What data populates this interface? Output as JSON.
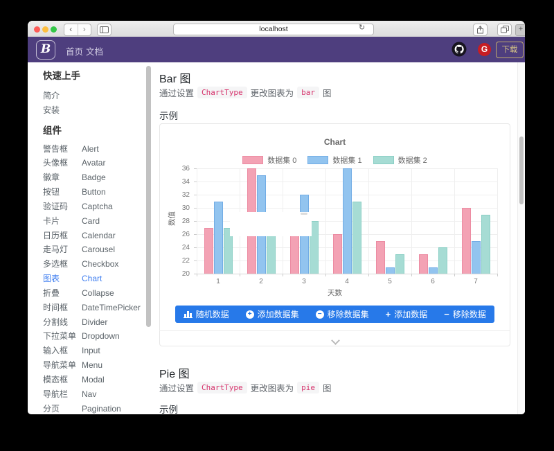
{
  "browser": {
    "url": "localhost",
    "back_glyph": "‹",
    "forward_glyph": "›",
    "reload_glyph": "↻",
    "newtab_glyph": "+"
  },
  "navbar": {
    "logo": "B",
    "links": [
      "首页",
      "文档"
    ],
    "download_label": "下载"
  },
  "sidebar": {
    "sections": [
      {
        "title": "快速上手",
        "items": [
          {
            "zh": "简介",
            "en": ""
          },
          {
            "zh": "安装",
            "en": ""
          }
        ]
      },
      {
        "title": "组件",
        "items": [
          {
            "zh": "警告框",
            "en": "Alert"
          },
          {
            "zh": "头像框",
            "en": "Avatar"
          },
          {
            "zh": "徽章",
            "en": "Badge"
          },
          {
            "zh": "按钮",
            "en": "Button"
          },
          {
            "zh": "验证码",
            "en": "Captcha"
          },
          {
            "zh": "卡片",
            "en": "Card"
          },
          {
            "zh": "日历框",
            "en": "Calendar"
          },
          {
            "zh": "走马灯",
            "en": "Carousel"
          },
          {
            "zh": "多选框",
            "en": "Checkbox"
          },
          {
            "zh": "图表",
            "en": "Chart",
            "active": true
          },
          {
            "zh": "折叠",
            "en": "Collapse"
          },
          {
            "zh": "时间框",
            "en": "DateTimePicker"
          },
          {
            "zh": "分割线",
            "en": "Divider"
          },
          {
            "zh": "下拉菜单",
            "en": "Dropdown"
          },
          {
            "zh": "输入框",
            "en": "Input"
          },
          {
            "zh": "导航菜单",
            "en": "Menu"
          },
          {
            "zh": "模态框",
            "en": "Modal"
          },
          {
            "zh": "导航栏",
            "en": "Nav"
          },
          {
            "zh": "分页",
            "en": "Pagination"
          }
        ]
      }
    ]
  },
  "content": {
    "sections": [
      {
        "title": "Bar 图",
        "desc": [
          "通过设置",
          "ChartType",
          "更改图表为",
          "bar",
          "图"
        ],
        "example_label": "示例"
      },
      {
        "title": "Pie 图",
        "desc": [
          "通过设置",
          "ChartType",
          "更改图表为",
          "pie",
          "图"
        ],
        "example_label": "示例"
      }
    ],
    "toolbar_buttons": [
      {
        "icon": "bar-chart-icon",
        "label": "随机数据"
      },
      {
        "icon": "circle-plus-icon",
        "label": "添加数据集"
      },
      {
        "icon": "circle-minus-icon",
        "label": "移除数据集"
      },
      {
        "icon": "plus-icon",
        "label": "添加数据"
      },
      {
        "icon": "minus-icon",
        "label": "移除数据"
      }
    ]
  },
  "chart_data": {
    "type": "bar",
    "title": "Chart",
    "categories": [
      "1",
      "2",
      "3",
      "4",
      "5",
      "6",
      "7"
    ],
    "series": [
      {
        "name": "数据集 0",
        "fill": "#f3a2b4",
        "border": "#ec8ba2",
        "values": [
          27,
          36,
          26,
          26,
          25,
          23,
          30
        ]
      },
      {
        "name": "数据集 1",
        "fill": "#92c4ef",
        "border": "#72ace5",
        "values": [
          31,
          35,
          32,
          36,
          21,
          21,
          25
        ]
      },
      {
        "name": "数据集 2",
        "fill": "#a6dcd4",
        "border": "#8bcfc5",
        "values": [
          27,
          27,
          28,
          31,
          23,
          24,
          29
        ]
      }
    ],
    "xlabel": "天数",
    "ylabel": "数值",
    "ylim": [
      20,
      36
    ],
    "ytick_step": 2,
    "legend_position": "top",
    "grid": true
  },
  "colors": {
    "navbar_purple": "#4e3e7e",
    "button_blue": "#2779e9",
    "active_link_blue": "#3f7ef0",
    "code_pink": "#d6336c",
    "gitee_red": "#c71d23"
  }
}
